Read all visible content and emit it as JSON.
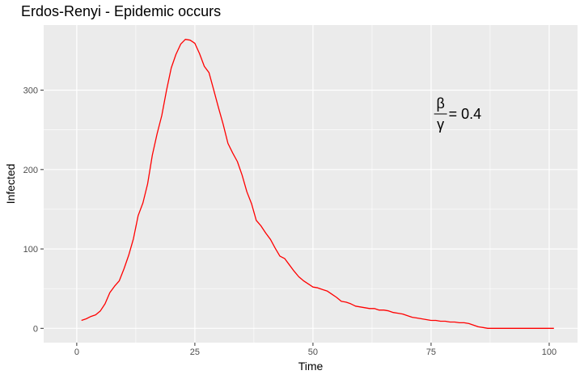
{
  "chart_data": {
    "type": "line",
    "title": "Erdos-Renyi - Epidemic occurs",
    "xlabel": "Time",
    "ylabel": "Infected",
    "xlim": [
      -7,
      106
    ],
    "ylim": [
      -18,
      382
    ],
    "x_ticks": [
      0,
      25,
      50,
      75,
      100
    ],
    "y_ticks": [
      0,
      100,
      200,
      300
    ],
    "x_tick_labels": [
      "0",
      "25",
      "50",
      "75",
      "100"
    ],
    "y_tick_labels": [
      "0",
      "100",
      "200",
      "300"
    ],
    "grid": true,
    "colors": {
      "panel": "#ebebeb",
      "grid": "#ffffff",
      "line": "#ff0000"
    },
    "annotation": {
      "numerator": "β",
      "denominator": "γ",
      "value_text": "= 0.4",
      "x": 77,
      "y": 270
    },
    "series": [
      {
        "color": "#ff0000",
        "x": [
          1,
          2,
          3,
          4,
          5,
          6,
          7,
          8,
          9,
          10,
          11,
          12,
          13,
          14,
          15,
          16,
          17,
          18,
          19,
          20,
          21,
          22,
          23,
          24,
          25,
          26,
          27,
          28,
          29,
          30,
          31,
          32,
          33,
          34,
          35,
          36,
          37,
          38,
          39,
          40,
          41,
          42,
          43,
          44,
          45,
          46,
          47,
          48,
          49,
          50,
          51,
          52,
          53,
          54,
          55,
          56,
          57,
          58,
          59,
          60,
          61,
          62,
          63,
          64,
          65,
          66,
          67,
          68,
          69,
          70,
          71,
          72,
          73,
          74,
          75,
          76,
          77,
          78,
          79,
          80,
          81,
          82,
          83,
          84,
          85,
          86,
          87,
          88,
          89,
          90,
          91,
          92,
          93,
          94,
          95,
          96,
          97,
          98,
          99,
          100,
          101
        ],
        "y": [
          10,
          12,
          15,
          17,
          22,
          31,
          45,
          53,
          60,
          75,
          92,
          113,
          142,
          158,
          182,
          218,
          245,
          268,
          300,
          328,
          345,
          358,
          364,
          363,
          359,
          346,
          330,
          322,
          300,
          278,
          257,
          233,
          221,
          210,
          193,
          172,
          157,
          136,
          129,
          120,
          112,
          101,
          91,
          88,
          80,
          72,
          65,
          60,
          56,
          52,
          51,
          49,
          47,
          43,
          39,
          34,
          33,
          31,
          28,
          27,
          26,
          25,
          25,
          23,
          23,
          22,
          20,
          19,
          18,
          16,
          14,
          13,
          12,
          11,
          10,
          10,
          9,
          9,
          8,
          8,
          7,
          7,
          6,
          4,
          2,
          1,
          0,
          0,
          0,
          0,
          0,
          0,
          0,
          0,
          0,
          0,
          0,
          0,
          0,
          0,
          0
        ]
      }
    ]
  }
}
